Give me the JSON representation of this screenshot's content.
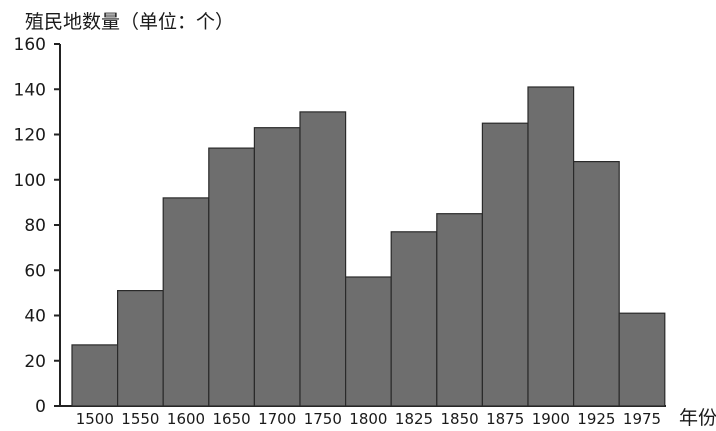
{
  "chart_data": {
    "type": "bar",
    "ylabel": "殖民地数量（单位：个）",
    "xlabel": "年份",
    "categories": [
      "1500",
      "1550",
      "1600",
      "1650",
      "1700",
      "1750",
      "1800",
      "1825",
      "1850",
      "1875",
      "1900",
      "1925",
      "1975"
    ],
    "values": [
      27,
      51,
      92,
      114,
      123,
      130,
      57,
      77,
      85,
      125,
      141,
      108,
      41
    ],
    "ylim": [
      0,
      160
    ],
    "yticks": [
      "0",
      "20",
      "40",
      "60",
      "80",
      "100",
      "120",
      "140",
      "160"
    ],
    "grid": false,
    "legend": "none",
    "colors": {
      "bar": "#6e6e6e",
      "bar_edge": "#2a2a2a",
      "axis": "#222222",
      "text": "#1a1a1a"
    }
  }
}
